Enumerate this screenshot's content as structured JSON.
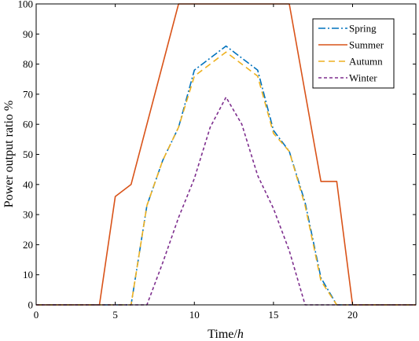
{
  "chart_data": {
    "type": "line",
    "xlabel_main": "Time/",
    "xlabel_unit": "h",
    "ylabel": "Power output ratio %",
    "xlim": [
      0,
      24
    ],
    "ylim": [
      0,
      100
    ],
    "xticks": [
      0,
      5,
      10,
      15,
      20
    ],
    "yticks": [
      0,
      10,
      20,
      30,
      40,
      50,
      60,
      70,
      80,
      90,
      100
    ],
    "grid": false,
    "legend_position": "top-right",
    "series": [
      {
        "name": "Spring",
        "color": "#0072BD",
        "dash": "9,3,2,3",
        "x": [
          0,
          6,
          7,
          8,
          9,
          10,
          11,
          12,
          13,
          14,
          15,
          16,
          17,
          18,
          19,
          24
        ],
        "y": [
          0,
          0,
          33,
          48,
          59,
          78,
          82,
          86,
          82,
          78,
          58,
          51,
          34,
          9,
          0,
          0
        ]
      },
      {
        "name": "Summer",
        "color": "#D95319",
        "dash": "",
        "x": [
          0,
          4,
          5,
          6,
          9,
          16,
          18,
          19,
          20,
          24
        ],
        "y": [
          0,
          0,
          36,
          40,
          100,
          100,
          41,
          41,
          0,
          0
        ]
      },
      {
        "name": "Autumn",
        "color": "#EDB120",
        "dash": "8,5",
        "x": [
          0,
          6,
          7,
          8,
          9,
          10,
          11,
          12,
          13,
          14,
          15,
          16,
          17,
          18,
          19,
          24
        ],
        "y": [
          0,
          0,
          33,
          48,
          59,
          76,
          80,
          84,
          80,
          76,
          57,
          51,
          33,
          8,
          0,
          0
        ]
      },
      {
        "name": "Winter",
        "color": "#7E2F8E",
        "dash": "4,3",
        "x": [
          0,
          7,
          8,
          9,
          10,
          11,
          12,
          13,
          14,
          15,
          16,
          17,
          24
        ],
        "y": [
          0,
          0,
          14,
          29,
          42,
          59,
          69,
          60,
          43,
          32,
          18,
          0,
          0
        ]
      }
    ]
  }
}
